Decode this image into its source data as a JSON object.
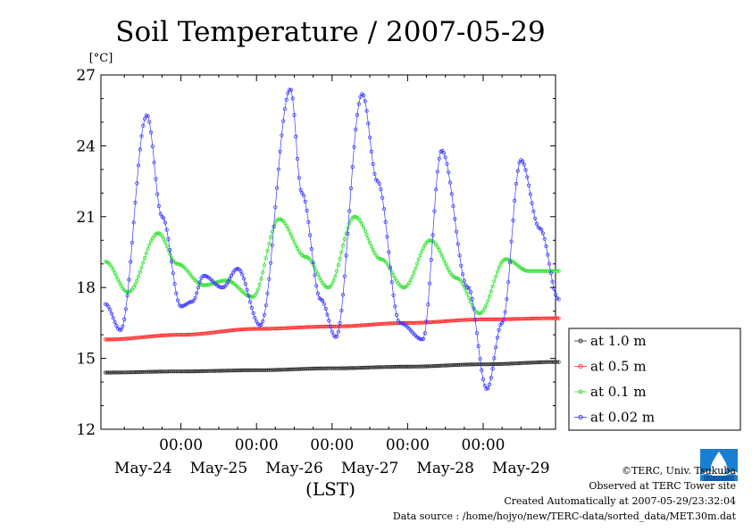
{
  "chart_data": {
    "type": "line",
    "title": "Soil Temperature / 2007-05-29",
    "ylabel": "[°C]",
    "xlabel": "(LST)",
    "ylim": [
      12,
      27
    ],
    "yticks": [
      12,
      15,
      18,
      21,
      24,
      27
    ],
    "xlim": [
      0,
      6
    ],
    "x_unit": "days starting May-24 00:00 LST",
    "time_tick_label": "00:00",
    "day_labels": [
      "May-24",
      "May-25",
      "May-26",
      "May-27",
      "May-28",
      "May-29"
    ],
    "legend_position": "right",
    "series": [
      {
        "name": "at 1.0 m",
        "color": "#303030",
        "x": [
          0,
          1,
          2,
          3,
          4,
          5,
          6
        ],
        "y": [
          14.4,
          14.45,
          14.5,
          14.58,
          14.65,
          14.75,
          14.85
        ]
      },
      {
        "name": "at 0.5 m",
        "color": "#ff3030",
        "x": [
          0,
          1,
          2,
          3,
          4,
          5,
          6
        ],
        "y": [
          15.8,
          16.0,
          16.25,
          16.35,
          16.5,
          16.65,
          16.7
        ]
      },
      {
        "name": "at 0.1 m",
        "color": "#30e030",
        "x": [
          0,
          0.3,
          0.7,
          0.95,
          1.3,
          1.6,
          1.95,
          2.3,
          2.65,
          2.95,
          3.3,
          3.65,
          3.95,
          4.3,
          4.65,
          4.95,
          5.3,
          5.6,
          5.95
        ],
        "y": [
          19.1,
          17.8,
          20.3,
          19.0,
          18.1,
          18.3,
          17.6,
          20.9,
          19.3,
          18.0,
          21.0,
          19.2,
          18.0,
          20.0,
          18.4,
          16.9,
          19.2,
          18.7,
          18.7
        ]
      },
      {
        "name": "at 0.02 m",
        "color": "#3838ff",
        "x": [
          0,
          0.2,
          0.55,
          0.75,
          1.0,
          1.15,
          1.3,
          1.55,
          1.75,
          2.05,
          2.45,
          2.6,
          2.85,
          3.05,
          3.4,
          3.6,
          3.9,
          4.2,
          4.45,
          4.8,
          5.05,
          5.25,
          5.5,
          5.75,
          6.0
        ],
        "y": [
          17.3,
          16.2,
          25.3,
          21.0,
          17.2,
          17.4,
          18.5,
          18.0,
          18.8,
          16.4,
          26.4,
          22.0,
          17.5,
          15.9,
          26.2,
          22.5,
          16.5,
          15.8,
          23.8,
          18.0,
          13.7,
          16.5,
          23.4,
          20.5,
          17.5
        ]
      }
    ]
  },
  "credits": {
    "copyright": "©TERC, Univ. Tsukuba",
    "observed": "Observed at TERC Tower site",
    "created": "Created Automatically at 2007-05-29/23:32:04",
    "source": "Data source : /home/hojyo/new/TERC-data/sorted_data/MET.30m.dat"
  }
}
